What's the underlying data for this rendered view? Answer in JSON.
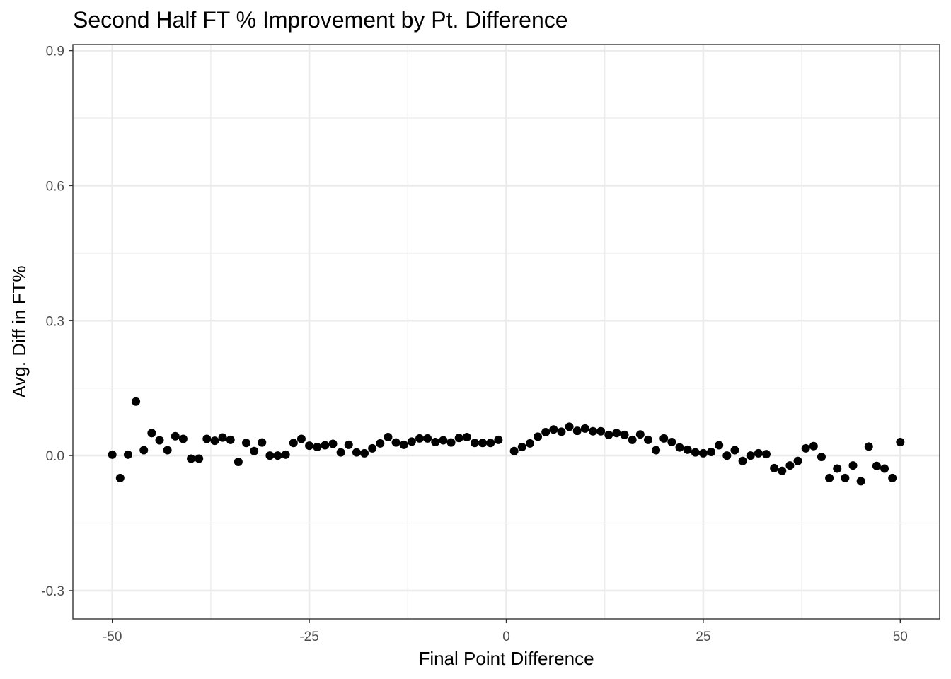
{
  "chart_data": {
    "type": "scatter",
    "title": "Second Half FT % Improvement by Pt. Difference",
    "xlabel": "Final Point Difference",
    "ylabel": "Avg. Diff in FT%",
    "xlim": [
      -55,
      55
    ],
    "ylim": [
      -0.363,
      0.9135
    ],
    "x_ticks": [
      -50,
      -25,
      0,
      25,
      50
    ],
    "x_tick_labels": [
      "-50",
      "-25",
      "0",
      "25",
      "50"
    ],
    "y_ticks": [
      -0.3,
      0.0,
      0.3,
      0.6,
      0.9
    ],
    "y_tick_labels": [
      "-0.3",
      "0.0",
      "0.3",
      "0.6",
      "0.9"
    ],
    "grid": true,
    "legend": "none",
    "point_color": "#000000",
    "points": [
      [
        -50,
        0.002
      ],
      [
        -49,
        -0.05
      ],
      [
        -48,
        0.002
      ],
      [
        -47,
        0.12
      ],
      [
        -46,
        0.012
      ],
      [
        -45,
        0.05
      ],
      [
        -44,
        0.034
      ],
      [
        -43,
        0.012
      ],
      [
        -42,
        0.043
      ],
      [
        -41,
        0.037
      ],
      [
        -40,
        -0.007
      ],
      [
        -39,
        -0.007
      ],
      [
        -38,
        0.037
      ],
      [
        -37,
        0.033
      ],
      [
        -36,
        0.04
      ],
      [
        -35,
        0.035
      ],
      [
        -34,
        -0.014
      ],
      [
        -33,
        0.028
      ],
      [
        -32,
        0.01
      ],
      [
        -31,
        0.029
      ],
      [
        -30,
        0.0
      ],
      [
        -29,
        0.0
      ],
      [
        -28,
        0.002
      ],
      [
        -27,
        0.028
      ],
      [
        -26,
        0.037
      ],
      [
        -25,
        0.022
      ],
      [
        -24,
        0.019
      ],
      [
        -23,
        0.023
      ],
      [
        -22,
        0.026
      ],
      [
        -21,
        0.007
      ],
      [
        -20,
        0.024
      ],
      [
        -19,
        0.007
      ],
      [
        -18,
        0.005
      ],
      [
        -17,
        0.016
      ],
      [
        -16,
        0.027
      ],
      [
        -15,
        0.041
      ],
      [
        -14,
        0.029
      ],
      [
        -13,
        0.024
      ],
      [
        -12,
        0.031
      ],
      [
        -11,
        0.038
      ],
      [
        -10,
        0.038
      ],
      [
        -9,
        0.03
      ],
      [
        -8,
        0.034
      ],
      [
        -7,
        0.029
      ],
      [
        -6,
        0.039
      ],
      [
        -5,
        0.041
      ],
      [
        -4,
        0.028
      ],
      [
        -3,
        0.028
      ],
      [
        -2,
        0.028
      ],
      [
        -1,
        0.035
      ],
      [
        1,
        0.01
      ],
      [
        2,
        0.019
      ],
      [
        3,
        0.027
      ],
      [
        4,
        0.042
      ],
      [
        5,
        0.052
      ],
      [
        6,
        0.058
      ],
      [
        7,
        0.053
      ],
      [
        8,
        0.064
      ],
      [
        9,
        0.055
      ],
      [
        10,
        0.06
      ],
      [
        11,
        0.054
      ],
      [
        12,
        0.054
      ],
      [
        13,
        0.046
      ],
      [
        14,
        0.05
      ],
      [
        15,
        0.046
      ],
      [
        16,
        0.035
      ],
      [
        17,
        0.047
      ],
      [
        18,
        0.035
      ],
      [
        19,
        0.012
      ],
      [
        20,
        0.038
      ],
      [
        21,
        0.03
      ],
      [
        22,
        0.018
      ],
      [
        23,
        0.013
      ],
      [
        24,
        0.007
      ],
      [
        25,
        0.005
      ],
      [
        26,
        0.008
      ],
      [
        27,
        0.023
      ],
      [
        28,
        0.0
      ],
      [
        29,
        0.012
      ],
      [
        30,
        -0.012
      ],
      [
        31,
        0.0
      ],
      [
        32,
        0.005
      ],
      [
        33,
        0.003
      ],
      [
        34,
        -0.028
      ],
      [
        35,
        -0.034
      ],
      [
        36,
        -0.022
      ],
      [
        37,
        -0.012
      ],
      [
        38,
        0.016
      ],
      [
        39,
        0.021
      ],
      [
        40,
        -0.003
      ],
      [
        41,
        -0.05
      ],
      [
        42,
        -0.029
      ],
      [
        43,
        -0.05
      ],
      [
        44,
        -0.022
      ],
      [
        45,
        -0.057
      ],
      [
        46,
        0.02
      ],
      [
        47,
        -0.023
      ],
      [
        48,
        -0.029
      ],
      [
        49,
        -0.05
      ],
      [
        50,
        0.03
      ]
    ]
  }
}
